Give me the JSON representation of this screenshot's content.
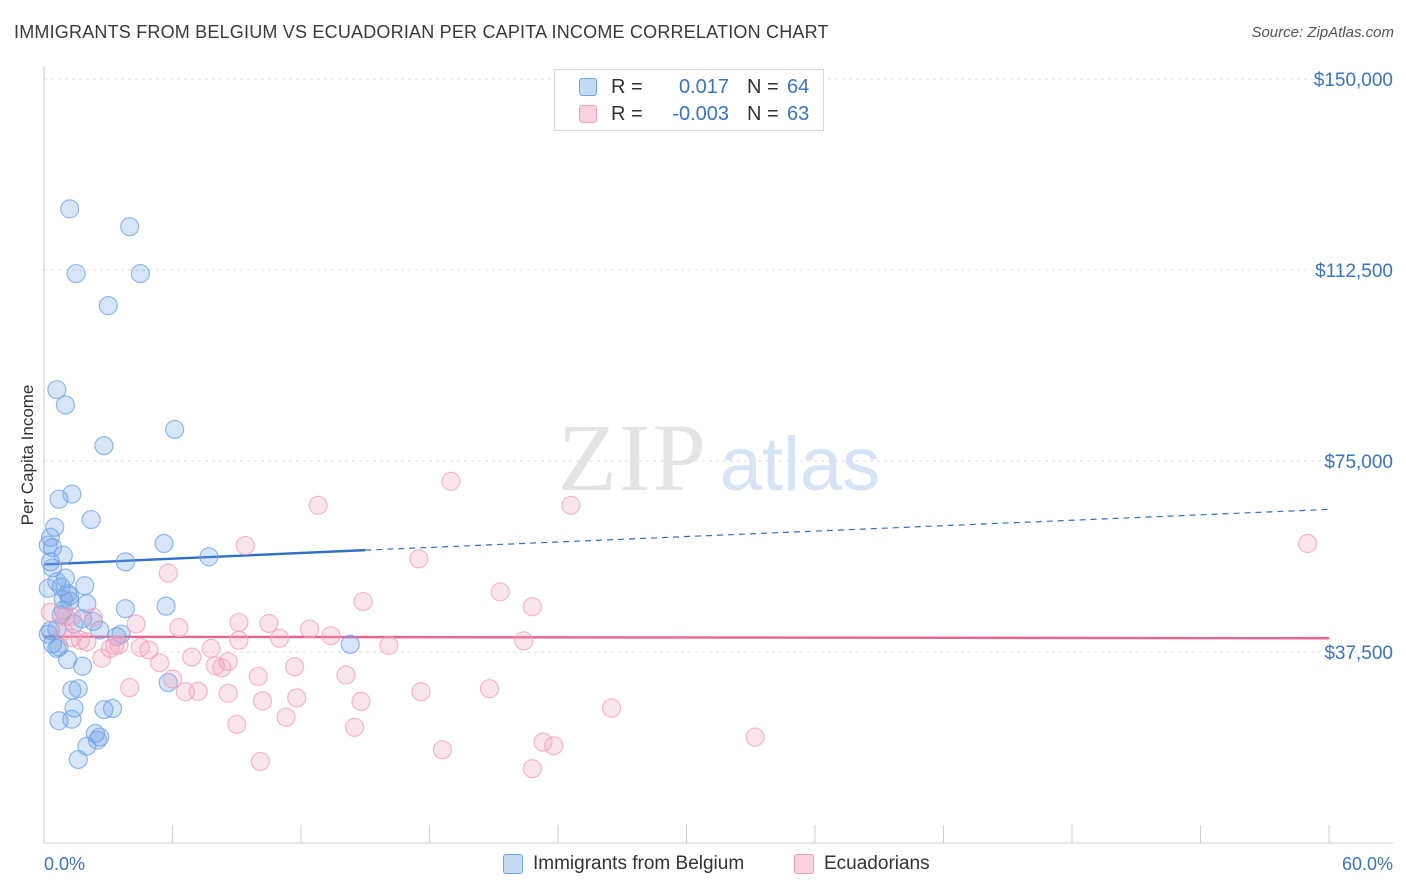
{
  "title": "IMMIGRANTS FROM BELGIUM VS ECUADORIAN PER CAPITA INCOME CORRELATION CHART",
  "source": "Source: ZipAtlas.com",
  "watermark": {
    "zip": "ZIP",
    "atlas": "atlas"
  },
  "colors": {
    "blue": "#6fa3e6",
    "blue_line": "#2f6fc9",
    "pink": "#f1a0bc",
    "pink_line": "#e8658f",
    "axis_text": "#3a74c4"
  },
  "legend": {
    "r_label": "R =",
    "n_label": "N =",
    "rows": [
      {
        "r": "0.017",
        "n": "64"
      },
      {
        "r": "-0.003",
        "n": "63"
      }
    ]
  },
  "series_labels": {
    "blue": "Immigrants from Belgium",
    "pink": "Ecuadorians"
  },
  "chart_data": {
    "type": "scatter",
    "title": "IMMIGRANTS FROM BELGIUM VS ECUADORIAN PER CAPITA INCOME CORRELATION CHART",
    "xlabel": "",
    "ylabel": "Per Capita Income",
    "xlim": [
      0,
      60
    ],
    "ylim": [
      0,
      150000
    ],
    "x_tick_labels": [
      "0.0%",
      "60.0%"
    ],
    "y_ticks": [
      37500,
      75000,
      112500,
      150000
    ],
    "y_tick_labels": [
      "$37,500",
      "$75,000",
      "$112,500",
      "$150,000"
    ],
    "grid": true,
    "series": [
      {
        "name": "Immigrants from Belgium",
        "r": 0.017,
        "n": 64,
        "trend_solid": [
          [
            0,
            54700
          ],
          [
            15,
            57500
          ]
        ],
        "trend_dashed": [
          [
            15,
            57500
          ],
          [
            60,
            65500
          ]
        ],
        "points": [
          [
            1.2,
            124500
          ],
          [
            4.0,
            121000
          ],
          [
            1.5,
            111800
          ],
          [
            4.5,
            111800
          ],
          [
            3.0,
            105500
          ],
          [
            0.6,
            89000
          ],
          [
            1.0,
            86000
          ],
          [
            6.1,
            81200
          ],
          [
            2.8,
            78000
          ],
          [
            0.7,
            67500
          ],
          [
            1.3,
            68500
          ],
          [
            2.2,
            63500
          ],
          [
            0.5,
            62000
          ],
          [
            0.3,
            60000
          ],
          [
            0.2,
            58500
          ],
          [
            0.4,
            58000
          ],
          [
            0.9,
            56500
          ],
          [
            5.6,
            58800
          ],
          [
            3.8,
            55200
          ],
          [
            7.7,
            56200
          ],
          [
            0.3,
            55200
          ],
          [
            0.6,
            51300
          ],
          [
            0.2,
            50000
          ],
          [
            0.8,
            50300
          ],
          [
            1.9,
            50500
          ],
          [
            0.9,
            47800
          ],
          [
            1.2,
            48500
          ],
          [
            2.0,
            47000
          ],
          [
            3.8,
            46000
          ],
          [
            5.7,
            46500
          ],
          [
            0.9,
            45700
          ],
          [
            1.2,
            47500
          ],
          [
            0.8,
            44800
          ],
          [
            2.3,
            43500
          ],
          [
            0.3,
            41700
          ],
          [
            1.4,
            43000
          ],
          [
            2.6,
            41800
          ],
          [
            3.4,
            40500
          ],
          [
            3.6,
            41000
          ],
          [
            14.3,
            39000
          ],
          [
            0.4,
            39100
          ],
          [
            0.6,
            38200
          ],
          [
            0.7,
            38500
          ],
          [
            1.1,
            36000
          ],
          [
            1.8,
            34700
          ],
          [
            5.8,
            31500
          ],
          [
            1.3,
            30000
          ],
          [
            1.6,
            30300
          ],
          [
            1.4,
            26500
          ],
          [
            2.8,
            26200
          ],
          [
            3.2,
            26400
          ],
          [
            0.7,
            24000
          ],
          [
            1.3,
            24300
          ],
          [
            2.4,
            21500
          ],
          [
            2.6,
            20800
          ],
          [
            2.5,
            20200
          ],
          [
            2.0,
            19000
          ],
          [
            1.6,
            16400
          ],
          [
            0.4,
            54000
          ],
          [
            1.0,
            52000
          ],
          [
            0.6,
            42000
          ],
          [
            1.8,
            44000
          ],
          [
            0.2,
            41000
          ],
          [
            1.1,
            49000
          ]
        ]
      },
      {
        "name": "Ecuadorians",
        "r": -0.003,
        "n": 63,
        "trend_solid": [
          [
            0,
            40500
          ],
          [
            60,
            40200
          ]
        ],
        "points": [
          [
            19.0,
            71000
          ],
          [
            12.8,
            66300
          ],
          [
            24.6,
            66300
          ],
          [
            9.4,
            58400
          ],
          [
            17.5,
            55800
          ],
          [
            59.0,
            58800
          ],
          [
            5.8,
            53000
          ],
          [
            21.3,
            49300
          ],
          [
            14.9,
            47400
          ],
          [
            22.8,
            46400
          ],
          [
            0.3,
            45300
          ],
          [
            1.0,
            44400
          ],
          [
            1.3,
            44400
          ],
          [
            2.3,
            44300
          ],
          [
            4.3,
            43000
          ],
          [
            6.3,
            42300
          ],
          [
            9.1,
            43300
          ],
          [
            10.5,
            43100
          ],
          [
            12.4,
            42000
          ],
          [
            0.9,
            41600
          ],
          [
            1.3,
            40300
          ],
          [
            1.7,
            39800
          ],
          [
            2.0,
            39500
          ],
          [
            3.3,
            38800
          ],
          [
            3.5,
            38900
          ],
          [
            4.5,
            38400
          ],
          [
            4.9,
            37900
          ],
          [
            7.8,
            38200
          ],
          [
            9.1,
            39800
          ],
          [
            11.0,
            40200
          ],
          [
            13.4,
            40700
          ],
          [
            16.1,
            38800
          ],
          [
            22.4,
            39700
          ],
          [
            2.7,
            36300
          ],
          [
            3.1,
            38200
          ],
          [
            5.4,
            35400
          ],
          [
            6.9,
            36500
          ],
          [
            8.0,
            34800
          ],
          [
            8.6,
            35600
          ],
          [
            8.3,
            34400
          ],
          [
            6.0,
            32200
          ],
          [
            10.0,
            32700
          ],
          [
            11.7,
            34600
          ],
          [
            14.1,
            33000
          ],
          [
            4.0,
            30500
          ],
          [
            6.6,
            29700
          ],
          [
            7.2,
            29800
          ],
          [
            8.6,
            29400
          ],
          [
            11.8,
            28500
          ],
          [
            17.6,
            29700
          ],
          [
            20.8,
            30300
          ],
          [
            10.2,
            27900
          ],
          [
            14.8,
            27800
          ],
          [
            26.5,
            26500
          ],
          [
            9.0,
            23300
          ],
          [
            11.3,
            24700
          ],
          [
            14.5,
            22700
          ],
          [
            18.6,
            18300
          ],
          [
            23.3,
            19800
          ],
          [
            23.8,
            19100
          ],
          [
            10.1,
            16000
          ],
          [
            22.8,
            14600
          ],
          [
            33.2,
            20800
          ]
        ]
      }
    ]
  }
}
